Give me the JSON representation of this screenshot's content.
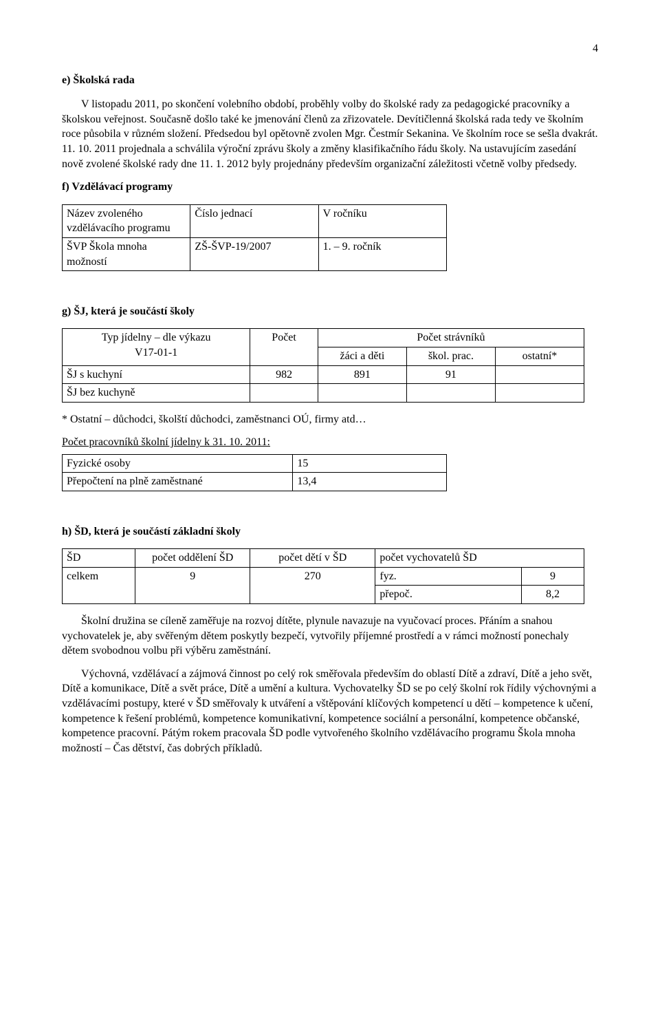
{
  "page_number": "4",
  "section_e": {
    "heading": "e)  Školská rada",
    "paragraph": "V listopadu 2011, po skončení volebního období, proběhly volby do školské rady za pedagogické pracovníky a školskou veřejnost. Současně došlo také ke jmenování členů za zřizovatele. Devítičlenná školská rada tedy ve školním roce působila v různém složení. Předsedou byl opětovně zvolen Mgr. Čestmír Sekanina.  Ve školním roce se sešla dvakrát. 11. 10. 2011 projednala a schválila výroční zprávu školy a změny klasifikačního řádu školy. Na ustavujícím zasedání nově zvolené školské rady dne 11. 1. 2012 byly projednány především organizační záležitosti včetně volby předsedy."
  },
  "section_f": {
    "heading": "f) Vzdělávací programy",
    "table": {
      "r1c1": "Název zvoleného vzdělávacího programu",
      "r1c2": "Číslo jednací",
      "r1c3": "V ročníku",
      "r2c1": "ŠVP Škola mnoha možností",
      "r2c2": "ZŠ-ŠVP-19/2007",
      "r2c3": "1. – 9. ročník"
    }
  },
  "section_g": {
    "heading": "g) ŠJ, která je součástí školy",
    "table": {
      "h1a": "Typ jídelny – dle výkazu",
      "h1b": "V17-01-1",
      "h2": "Počet",
      "h3": "Počet strávníků",
      "sub1": "žáci a děti",
      "sub2": "škol. prac.",
      "sub3": "ostatní*",
      "r1c1": "ŠJ s kuchyní",
      "r1c2": "982",
      "r1c3": "891",
      "r1c4": "91",
      "r1c5": "",
      "r2c1": "ŠJ bez kuchyně",
      "r2c2": "",
      "r2c3": "",
      "r2c4": "",
      "r2c5": ""
    },
    "note": "* Ostatní – důchodci, školští důchodci, zaměstnanci OÚ, firmy atd…",
    "subheading": "Počet pracovníků školní jídelny k 31. 10. 2011:",
    "table2": {
      "r1c1": "Fyzické osoby",
      "r1c2": "15",
      "r2c1": "Přepočtení na plně zaměstnané",
      "r2c2": "13,4"
    }
  },
  "section_h": {
    "heading": "h) ŠD, která je součástí základní školy",
    "table": {
      "h1": "ŠD",
      "h2": "počet oddělení ŠD",
      "h3": "počet dětí v ŠD",
      "h4": "počet vychovatelů ŠD",
      "r1c1": "celkem",
      "r1c2": "9",
      "r1c3": "270",
      "r1c4a": "fyz.",
      "r1c4b": "9",
      "r2c4a": "přepoč.",
      "r2c4b": "8,2"
    },
    "para1": "Školní družina se cíleně zaměřuje na rozvoj dítěte, plynule navazuje na vyučovací proces. Přáním a snahou vychovatelek je, aby svěřeným dětem poskytly bezpečí, vytvořily příjemné prostředí a v rámci možností ponechaly dětem svobodnou volbu při výběru zaměstnání.",
    "para2": "Výchovná, vzdělávací a zájmová činnost po celý rok směřovala především do oblastí Dítě a zdraví, Dítě a jeho svět, Dítě a komunikace, Dítě a svět práce, Dítě a umění a kultura. Vychovatelky ŠD se po celý školní rok řídily výchovnými a vzdělávacími postupy, které v ŠD směřovaly k utváření a vštěpování klíčových kompetencí u dětí – kompetence k učení, kompetence k řešení problémů, kompetence komunikativní, kompetence sociální a personální, kompetence občanské, kompetence pracovní. Pátým rokem pracovala ŠD podle vytvořeného školního vzdělávacího programu Škola mnoha možností – Čas dětství, čas dobrých příkladů."
  }
}
